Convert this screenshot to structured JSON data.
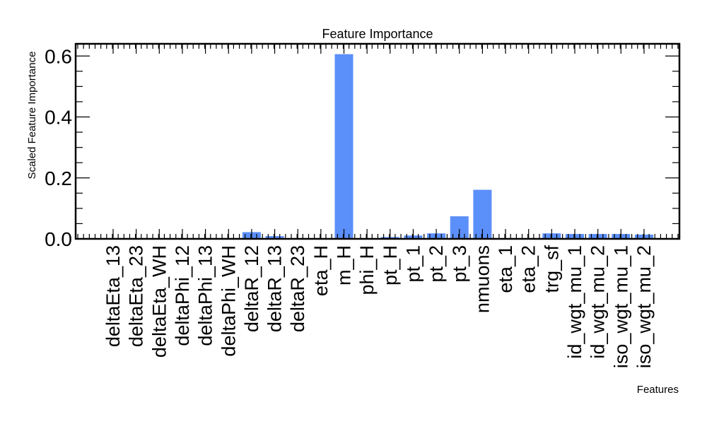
{
  "chart_data": {
    "type": "bar",
    "title": "Feature Importance",
    "xlabel": "Features",
    "ylabel": "Scaled Feature Importance",
    "ylim": [
      0,
      0.64
    ],
    "yticks": [
      0.0,
      0.2,
      0.4,
      0.6
    ],
    "ytick_labels": [
      "0.0",
      "0.2",
      "0.4",
      "0.6"
    ],
    "bar_color": "#5b8ffa",
    "categories": [
      "deltaEta_13",
      "deltaEta_23",
      "deltaEta_WH",
      "deltaPhi_12",
      "deltaPhi_13",
      "deltaPhi_WH",
      "deltaR_12",
      "deltaR_13",
      "deltaR_23",
      "eta_H",
      "m_H",
      "phi_H",
      "pt_H",
      "pt_1",
      "pt_2",
      "pt_3",
      "nmuons",
      "eta_1",
      "eta_2",
      "trg_sf",
      "id_wgt_mu_1",
      "id_wgt_mu_2",
      "iso_wgt_mu_1",
      "iso_wgt_mu_2"
    ],
    "values": [
      0.0,
      0.0,
      0.0,
      0.0,
      0.0,
      0.0,
      0.022,
      0.009,
      0.0,
      0.0,
      0.606,
      0.0,
      0.006,
      0.011,
      0.018,
      0.074,
      0.161,
      0.0,
      0.0,
      0.018,
      0.016,
      0.016,
      0.016,
      0.014
    ],
    "grid": false,
    "legend": "none"
  }
}
